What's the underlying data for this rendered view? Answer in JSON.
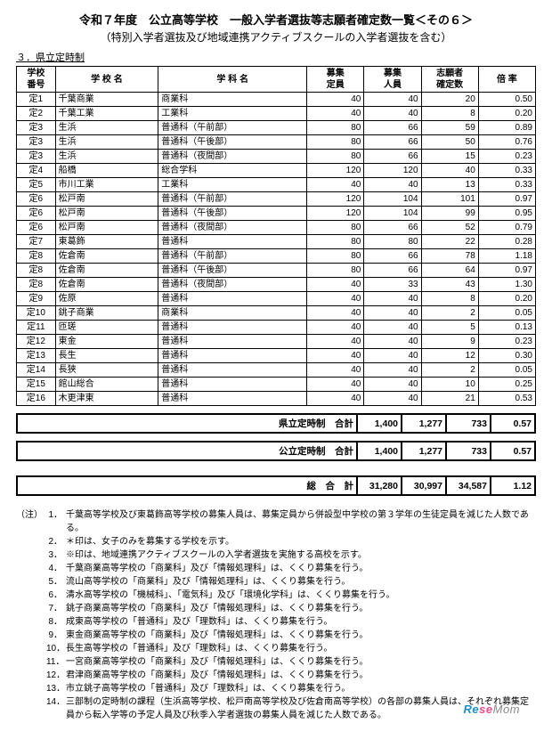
{
  "title": "令和７年度　公立高等学校　一般入学者選抜等志願者確定数一覧＜その６＞",
  "subtitle": "（特別入学者選抜及び地域連携アクティブスクールの入学者選抜を含む）",
  "section": "３．県立定時制",
  "headers": {
    "num": "学校\n番号",
    "school": "学 校 名",
    "dept": "学 科 名",
    "capacity": "募集\n定員",
    "persons": "募集\n人員",
    "applicants": "志願者\n確定数",
    "rate": "倍 率"
  },
  "rows": [
    {
      "num": "定1",
      "school": "千葉商業",
      "dept": "商業科",
      "cap": "40",
      "per": "40",
      "app": "20",
      "rate": "0.50"
    },
    {
      "num": "定2",
      "school": "千葉工業",
      "dept": "工業科",
      "cap": "40",
      "per": "40",
      "app": "8",
      "rate": "0.20"
    },
    {
      "num": "定3",
      "school": "生浜",
      "dept": "普通科（午前部）",
      "cap": "80",
      "per": "66",
      "app": "59",
      "rate": "0.89"
    },
    {
      "num": "定3",
      "school": "生浜",
      "dept": "普通科（午後部）",
      "cap": "80",
      "per": "66",
      "app": "50",
      "rate": "0.76"
    },
    {
      "num": "定3",
      "school": "生浜",
      "dept": "普通科（夜間部）",
      "cap": "80",
      "per": "66",
      "app": "15",
      "rate": "0.23"
    },
    {
      "num": "定4",
      "school": "船橋",
      "dept": "総合学科",
      "cap": "120",
      "per": "120",
      "app": "40",
      "rate": "0.33"
    },
    {
      "num": "定5",
      "school": "市川工業",
      "dept": "工業科",
      "cap": "40",
      "per": "40",
      "app": "13",
      "rate": "0.33"
    },
    {
      "num": "定6",
      "school": "松戸南",
      "dept": "普通科（午前部）",
      "cap": "120",
      "per": "104",
      "app": "101",
      "rate": "0.97"
    },
    {
      "num": "定6",
      "school": "松戸南",
      "dept": "普通科（午後部）",
      "cap": "120",
      "per": "104",
      "app": "99",
      "rate": "0.95"
    },
    {
      "num": "定6",
      "school": "松戸南",
      "dept": "普通科（夜間部）",
      "cap": "80",
      "per": "66",
      "app": "52",
      "rate": "0.79"
    },
    {
      "num": "定7",
      "school": "東葛飾",
      "dept": "普通科",
      "cap": "80",
      "per": "80",
      "app": "22",
      "rate": "0.28"
    },
    {
      "num": "定8",
      "school": "佐倉南",
      "dept": "普通科（午前部）",
      "cap": "80",
      "per": "66",
      "app": "78",
      "rate": "1.18"
    },
    {
      "num": "定8",
      "school": "佐倉南",
      "dept": "普通科（午後部）",
      "cap": "80",
      "per": "66",
      "app": "64",
      "rate": "0.97"
    },
    {
      "num": "定8",
      "school": "佐倉南",
      "dept": "普通科（夜間部）",
      "cap": "40",
      "per": "33",
      "app": "43",
      "rate": "1.30"
    },
    {
      "num": "定9",
      "school": "佐原",
      "dept": "普通科",
      "cap": "40",
      "per": "40",
      "app": "8",
      "rate": "0.20"
    },
    {
      "num": "定10",
      "school": "銚子商業",
      "dept": "商業科",
      "cap": "40",
      "per": "40",
      "app": "2",
      "rate": "0.05"
    },
    {
      "num": "定11",
      "school": "匝瑳",
      "dept": "普通科",
      "cap": "40",
      "per": "40",
      "app": "5",
      "rate": "0.13"
    },
    {
      "num": "定12",
      "school": "東金",
      "dept": "普通科",
      "cap": "40",
      "per": "40",
      "app": "9",
      "rate": "0.23"
    },
    {
      "num": "定13",
      "school": "長生",
      "dept": "普通科",
      "cap": "40",
      "per": "40",
      "app": "12",
      "rate": "0.30"
    },
    {
      "num": "定14",
      "school": "長狭",
      "dept": "普通科",
      "cap": "40",
      "per": "40",
      "app": "2",
      "rate": "0.05"
    },
    {
      "num": "定15",
      "school": "館山総合",
      "dept": "普通科",
      "cap": "40",
      "per": "40",
      "app": "10",
      "rate": "0.25"
    },
    {
      "num": "定16",
      "school": "木更津東",
      "dept": "普通科",
      "cap": "40",
      "per": "40",
      "app": "21",
      "rate": "0.53"
    }
  ],
  "summaries": [
    {
      "label": "県立定時制　合計",
      "cap": "1,400",
      "per": "1,277",
      "app": "733",
      "rate": "0.57"
    },
    {
      "label": "公立定時制　合計",
      "cap": "1,400",
      "per": "1,277",
      "app": "733",
      "rate": "0.57"
    },
    {
      "label": "総　合　計",
      "cap": "31,280",
      "per": "30,997",
      "app": "34,587",
      "rate": "1.12"
    }
  ],
  "notesTag": "（注）",
  "notes": [
    "千葉高等学校及び東葛飾高等学校の募集人員は、募集定員から併設型中学校の第３学年の生徒定員を減じた人数である。",
    "＊印は、女子のみを募集する学校を示す。",
    "※印は、地域連携アクティブスクールの入学者選抜を実施する高校を示す。",
    "千葉商業高等学校の「商業科」及び「情報処理科」は、くくり募集を行う。",
    "流山高等学校の「商業科」及び「情報処理科」は、くくり募集を行う。",
    "清水高等学校の「機械科」、「電気科」及び「環境化学科」は、くくり募集を行う。",
    "銚子商業高等学校の「商業科」及び「情報処理科」は、くくり募集を行う。",
    "成東高等学校の「普通科」及び「理数科」は、くくり募集を行う。",
    "東金商業高等学校の「商業科」及び「情報処理科」は、くくり募集を行う。",
    "長生高等学校の「普通科」及び「理数科」は、くくり募集を行う。",
    "一宮商業高等学校の「商業科」及び「情報処理科」は、くくり募集を行う。",
    "君津商業高等学校の「商業科」及び「情報処理科」は、くくり募集を行う。",
    "市立銚子高等学校の「普通科」及び「理数科」は、くくり募集を行う。",
    "三部制の定時制の課程（生浜高等学校、松戸南高等学校及び佐倉南高等学校）の各部の募集人員は、それぞれ募集定員から転入学等の予定人員及び秋季入学者選抜の募集人員を減じた人数である。"
  ],
  "logo": {
    "re": "Re",
    "se": "se",
    "mom": "Mom"
  }
}
